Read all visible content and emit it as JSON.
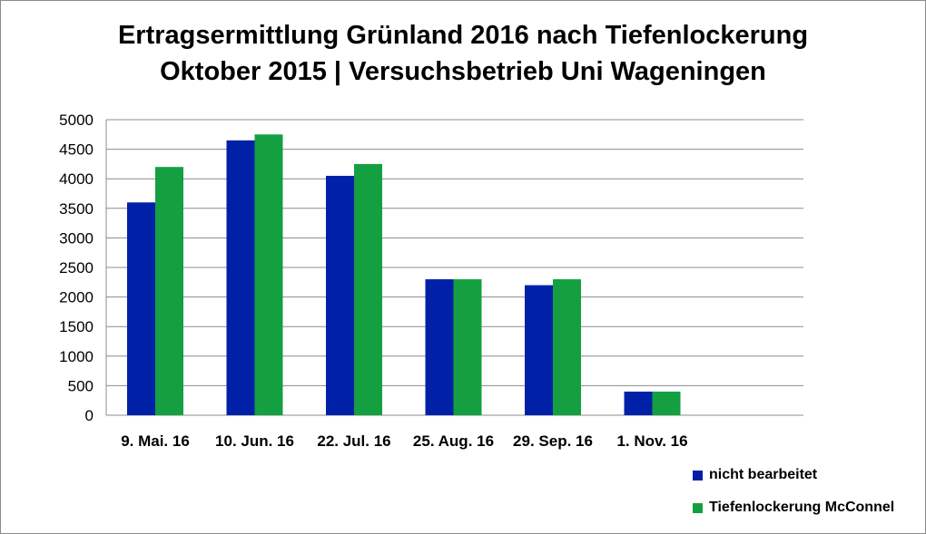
{
  "chart_data": {
    "type": "bar",
    "title_lines": [
      "Ertragsermittlung Grünland 2016 nach Tiefenlockerung",
      "Oktober 2015 | Versuchsbetrieb Uni Wageningen"
    ],
    "categories": [
      "9. Mai. 16",
      "10. Jun. 16",
      "22. Jul. 16",
      "25. Aug. 16",
      "29. Sep. 16",
      "1. Nov. 16"
    ],
    "series": [
      {
        "name": "nicht bearbeitet",
        "color": "#0020A8",
        "values": [
          3600,
          4650,
          4050,
          2300,
          2200,
          400
        ]
      },
      {
        "name": "Tiefenlockerung McConnel",
        "color": "#14A040",
        "values": [
          4200,
          4750,
          4250,
          2300,
          2300,
          400
        ]
      }
    ],
    "yticks": [
      "0",
      "500",
      "1000",
      "1500",
      "2000",
      "2500",
      "3000",
      "3500",
      "4000",
      "4500",
      "5000"
    ],
    "ylim": [
      0,
      5000
    ],
    "grid": true,
    "legend_position": "bottom-right"
  }
}
